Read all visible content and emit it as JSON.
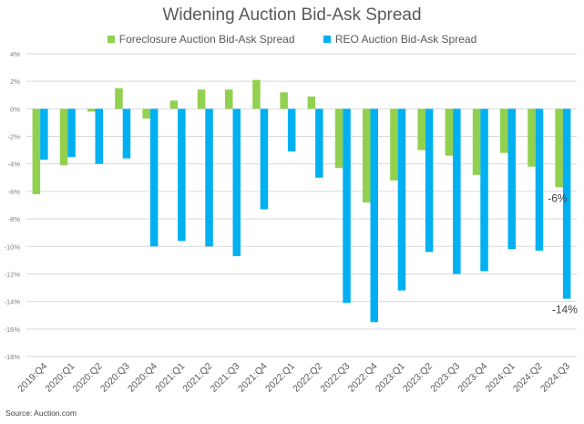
{
  "chart_data": {
    "type": "bar",
    "title": "Widening Auction Bid-Ask Spread",
    "xlabel": "",
    "ylabel": "",
    "ylim": [
      -18,
      4
    ],
    "yticks": [
      4,
      2,
      0,
      -2,
      -4,
      -6,
      -8,
      -10,
      -12,
      -14,
      -16,
      -18
    ],
    "ytick_labels": [
      "4%",
      "2%",
      "0%",
      "-2%",
      "-4%",
      "-6%",
      "-8%",
      "-10%",
      "-12%",
      "-14%",
      "-16%",
      "-18%"
    ],
    "grid": true,
    "legend_position": "top-center",
    "categories": [
      "2019:Q4",
      "2020:Q1",
      "2020:Q2",
      "2020:Q3",
      "2020:Q4",
      "2021:Q1",
      "2021:Q2",
      "2021:Q3",
      "2021:Q4",
      "2022:Q1",
      "2022:Q2",
      "2022:Q3",
      "2022:Q4",
      "2023:Q1",
      "2023:Q2",
      "2023:Q3",
      "2023:Q4",
      "2024:Q1",
      "2024:Q2",
      "2024:Q3"
    ],
    "series": [
      {
        "name": "Foreclosure Auction Bid-Ask Spread",
        "color": "#92d050",
        "values": [
          -6.2,
          -4.1,
          -0.2,
          1.5,
          -0.7,
          0.6,
          1.4,
          1.4,
          2.1,
          1.2,
          0.9,
          -4.3,
          -6.8,
          -5.2,
          -3.0,
          -3.4,
          -4.8,
          -3.2,
          -4.2,
          -5.7
        ]
      },
      {
        "name": "REO Auction Bid-Ask Spread",
        "color": "#00b0f0",
        "values": [
          -3.7,
          -3.5,
          -4.0,
          -3.6,
          -10.0,
          -9.6,
          -10.0,
          -10.7,
          -7.3,
          -3.1,
          -5.0,
          -14.1,
          -15.5,
          -13.2,
          -10.4,
          -12.0,
          -11.8,
          -10.2,
          -10.3,
          -13.8
        ]
      }
    ],
    "annotations": [
      {
        "text": "-6%",
        "series": 0,
        "category": "2024:Q3"
      },
      {
        "text": "-14%",
        "series": 1,
        "category": "2024:Q3"
      }
    ],
    "source": "Source: Auction.com"
  }
}
